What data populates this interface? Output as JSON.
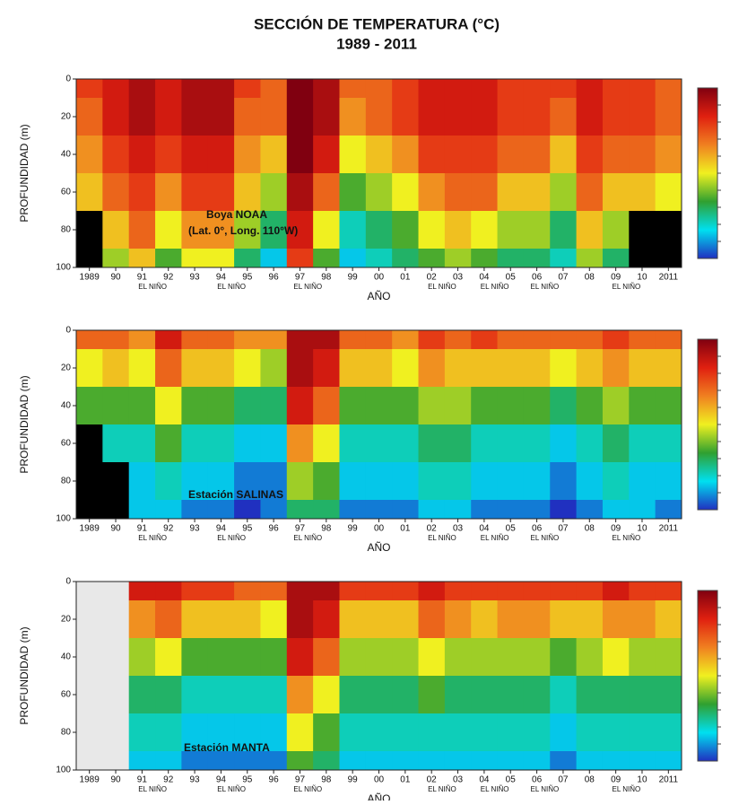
{
  "title": "SECCIÓN DE TEMPERATURA (°C)",
  "subtitle": "1989 - 2011",
  "chart_data": [
    {
      "type": "heatmap",
      "x_label": "AÑO",
      "y_label": "PROFUNDIDAD (m)",
      "annotations": [
        "Boya NOAA",
        "(Lat. 0°, Long. 110°W)"
      ],
      "x": [
        1989,
        1990,
        1991,
        1992,
        1993,
        1994,
        1995,
        1996,
        1997,
        1998,
        1999,
        2000,
        2001,
        2002,
        2003,
        2004,
        2005,
        2006,
        2007,
        2008,
        2009,
        2010,
        2011
      ],
      "y": [
        0,
        20,
        40,
        60,
        80,
        100
      ],
      "z": [
        [
          25,
          26,
          27,
          26,
          27,
          27,
          25,
          24,
          28,
          27,
          24,
          24,
          25,
          26,
          26,
          26,
          25,
          25,
          25,
          26,
          25,
          25,
          24
        ],
        [
          24,
          26,
          27,
          26,
          27,
          27,
          24,
          24,
          28,
          27,
          23,
          24,
          25,
          26,
          26,
          26,
          25,
          25,
          24,
          26,
          25,
          25,
          24
        ],
        [
          23,
          25,
          26,
          25,
          26,
          26,
          23,
          22,
          28,
          26,
          21,
          22,
          23,
          25,
          25,
          25,
          24,
          24,
          22,
          25,
          24,
          24,
          23
        ],
        [
          22,
          24,
          25,
          23,
          25,
          25,
          22,
          20,
          27,
          24,
          19,
          20,
          21,
          23,
          24,
          24,
          22,
          22,
          20,
          24,
          22,
          22,
          21
        ],
        [
          null,
          22,
          24,
          21,
          23,
          23,
          20,
          18,
          26,
          21,
          17,
          18,
          19,
          21,
          22,
          21,
          20,
          20,
          18,
          22,
          20,
          null,
          null
        ],
        [
          null,
          20,
          22,
          19,
          21,
          21,
          18,
          16,
          25,
          19,
          16,
          17,
          18,
          19,
          20,
          19,
          18,
          18,
          17,
          20,
          18,
          null,
          null
        ]
      ],
      "zlim": [
        14,
        28
      ],
      "colorscale": [
        "#2030c0",
        "#00e0f0",
        "#30a030",
        "#f0f020",
        "#f08020",
        "#e02010",
        "#800010"
      ],
      "missing_color": "#000000",
      "xlim": [
        1988.5,
        2011.5
      ],
      "ylim": [
        100,
        0
      ],
      "yticks": [
        0,
        20,
        40,
        60,
        80,
        100
      ],
      "xticks": [
        1989,
        {
          "value": 1990,
          "label": "90"
        },
        {
          "value": 1991,
          "label": "91"
        },
        {
          "value": 1992,
          "label": "92"
        },
        {
          "value": 1993,
          "label": "93"
        },
        {
          "value": 1994,
          "label": "94"
        },
        {
          "value": 1995,
          "label": "95"
        },
        {
          "value": 1996,
          "label": "96"
        },
        {
          "value": 1997,
          "label": "97"
        },
        {
          "value": 1998,
          "label": "98"
        },
        {
          "value": 1999,
          "label": "99"
        },
        {
          "value": 2000,
          "label": "00"
        },
        {
          "value": 2001,
          "label": "01"
        },
        {
          "value": 2002,
          "label": "02"
        },
        {
          "value": 2003,
          "label": "03"
        },
        {
          "value": 2004,
          "label": "04"
        },
        {
          "value": 2005,
          "label": "05"
        },
        {
          "value": 2006,
          "label": "06"
        },
        {
          "value": 2007,
          "label": "07"
        },
        {
          "value": 2008,
          "label": "08"
        },
        {
          "value": 2009,
          "label": "09"
        },
        {
          "value": 2010,
          "label": "10"
        },
        2011
      ],
      "x_notes": [
        {
          "x": 1991.4,
          "label": "EL NIÑO"
        },
        {
          "x": 1994.4,
          "label": "EL NIÑO"
        },
        {
          "x": 1997.3,
          "label": "EL NIÑO"
        },
        {
          "x": 2002.4,
          "label": "EL NIÑO"
        },
        {
          "x": 2004.4,
          "label": "EL NIÑO"
        },
        {
          "x": 2006.3,
          "label": "EL NIÑO"
        },
        {
          "x": 2009.4,
          "label": "EL NIÑO"
        }
      ]
    },
    {
      "type": "heatmap",
      "x_label": "AÑO",
      "y_label": "PROFUNDIDAD (m)",
      "annotations": [
        "Estación SALINAS"
      ],
      "x": [
        1989,
        1990,
        1991,
        1992,
        1993,
        1994,
        1995,
        1996,
        1997,
        1998,
        1999,
        2000,
        2001,
        2002,
        2003,
        2004,
        2005,
        2006,
        2007,
        2008,
        2009,
        2010,
        2011
      ],
      "y": [
        0,
        20,
        40,
        60,
        80,
        100
      ],
      "z": [
        [
          24,
          24,
          23,
          26,
          24,
          24,
          23,
          23,
          27,
          27,
          24,
          24,
          23,
          25,
          24,
          25,
          24,
          24,
          24,
          24,
          25,
          24,
          24
        ],
        [
          21,
          22,
          21,
          24,
          22,
          22,
          21,
          20,
          27,
          26,
          22,
          22,
          21,
          23,
          22,
          22,
          22,
          22,
          21,
          22,
          23,
          22,
          22
        ],
        [
          19,
          19,
          19,
          21,
          19,
          19,
          18,
          18,
          26,
          24,
          19,
          19,
          19,
          20,
          20,
          19,
          19,
          19,
          18,
          19,
          20,
          19,
          19
        ],
        [
          null,
          17,
          17,
          19,
          17,
          17,
          16,
          16,
          23,
          21,
          17,
          17,
          17,
          18,
          18,
          17,
          17,
          17,
          16,
          17,
          18,
          17,
          17
        ],
        [
          null,
          null,
          16,
          17,
          16,
          16,
          15,
          15,
          20,
          19,
          16,
          16,
          16,
          17,
          17,
          16,
          16,
          16,
          15,
          16,
          17,
          16,
          16
        ],
        [
          null,
          null,
          16,
          16,
          15,
          15,
          14,
          15,
          18,
          18,
          15,
          15,
          15,
          16,
          16,
          15,
          15,
          15,
          14,
          15,
          16,
          16,
          15
        ]
      ],
      "zlim": [
        14,
        28
      ],
      "colorscale": [
        "#2030c0",
        "#00e0f0",
        "#30a030",
        "#f0f020",
        "#f08020",
        "#e02010",
        "#800010"
      ],
      "missing_color": "#000000",
      "xlim": [
        1988.5,
        2011.5
      ],
      "ylim": [
        100,
        0
      ],
      "yticks": [
        0,
        20,
        40,
        60,
        80,
        100
      ],
      "xticks": [
        1989,
        {
          "value": 1990,
          "label": "90"
        },
        {
          "value": 1991,
          "label": "91"
        },
        {
          "value": 1992,
          "label": "92"
        },
        {
          "value": 1993,
          "label": "93"
        },
        {
          "value": 1994,
          "label": "94"
        },
        {
          "value": 1995,
          "label": "95"
        },
        {
          "value": 1996,
          "label": "96"
        },
        {
          "value": 1997,
          "label": "97"
        },
        {
          "value": 1998,
          "label": "98"
        },
        {
          "value": 1999,
          "label": "99"
        },
        {
          "value": 2000,
          "label": "00"
        },
        {
          "value": 2001,
          "label": "01"
        },
        {
          "value": 2002,
          "label": "02"
        },
        {
          "value": 2003,
          "label": "03"
        },
        {
          "value": 2004,
          "label": "04"
        },
        {
          "value": 2005,
          "label": "05"
        },
        {
          "value": 2006,
          "label": "06"
        },
        {
          "value": 2007,
          "label": "07"
        },
        {
          "value": 2008,
          "label": "08"
        },
        {
          "value": 2009,
          "label": "09"
        },
        {
          "value": 2010,
          "label": "10"
        },
        2011
      ],
      "x_notes": [
        {
          "x": 1991.4,
          "label": "EL NIÑO"
        },
        {
          "x": 1994.4,
          "label": "EL NIÑO"
        },
        {
          "x": 1997.3,
          "label": "EL NIÑO"
        },
        {
          "x": 2002.4,
          "label": "EL NIÑO"
        },
        {
          "x": 2004.4,
          "label": "EL NIÑO"
        },
        {
          "x": 2006.3,
          "label": "EL NIÑO"
        },
        {
          "x": 2009.4,
          "label": "EL NIÑO"
        }
      ]
    },
    {
      "type": "heatmap",
      "x_label": "AÑO",
      "y_label": "PROFUNDIDAD (m)",
      "annotations": [
        "Estación MANTA"
      ],
      "x": [
        1989,
        1990,
        1991,
        1992,
        1993,
        1994,
        1995,
        1996,
        1997,
        1998,
        1999,
        2000,
        2001,
        2002,
        2003,
        2004,
        2005,
        2006,
        2007,
        2008,
        2009,
        2010,
        2011
      ],
      "y": [
        0,
        20,
        40,
        60,
        80,
        100
      ],
      "z": [
        [
          null,
          null,
          26,
          26,
          25,
          25,
          24,
          24,
          27,
          27,
          25,
          25,
          25,
          26,
          25,
          25,
          25,
          25,
          25,
          25,
          26,
          25,
          25
        ],
        [
          null,
          null,
          23,
          24,
          22,
          22,
          22,
          21,
          27,
          26,
          22,
          22,
          22,
          24,
          23,
          22,
          23,
          23,
          22,
          22,
          23,
          23,
          22
        ],
        [
          null,
          null,
          20,
          21,
          19,
          19,
          19,
          19,
          26,
          24,
          20,
          20,
          20,
          21,
          20,
          20,
          20,
          20,
          19,
          20,
          21,
          20,
          20
        ],
        [
          null,
          null,
          18,
          18,
          17,
          17,
          17,
          17,
          23,
          21,
          18,
          18,
          18,
          19,
          18,
          18,
          18,
          18,
          17,
          18,
          18,
          18,
          18
        ],
        [
          null,
          null,
          17,
          17,
          16,
          16,
          16,
          16,
          21,
          19,
          17,
          17,
          17,
          17,
          17,
          17,
          17,
          17,
          16,
          17,
          17,
          17,
          17
        ],
        [
          null,
          null,
          16,
          16,
          15,
          15,
          15,
          15,
          19,
          18,
          16,
          16,
          16,
          16,
          16,
          16,
          16,
          16,
          15,
          16,
          16,
          16,
          16
        ]
      ],
      "zlim": [
        14,
        28
      ],
      "colorscale": [
        "#2030c0",
        "#00e0f0",
        "#30a030",
        "#f0f020",
        "#f08020",
        "#e02010",
        "#800010"
      ],
      "missing_color": "#e8e8e8",
      "xlim": [
        1988.5,
        2011.5
      ],
      "ylim": [
        100,
        0
      ],
      "yticks": [
        0,
        20,
        40,
        60,
        80,
        100
      ],
      "xticks": [
        1989,
        {
          "value": 1990,
          "label": "90"
        },
        {
          "value": 1991,
          "label": "91"
        },
        {
          "value": 1992,
          "label": "92"
        },
        {
          "value": 1993,
          "label": "93"
        },
        {
          "value": 1994,
          "label": "94"
        },
        {
          "value": 1995,
          "label": "95"
        },
        {
          "value": 1996,
          "label": "96"
        },
        {
          "value": 1997,
          "label": "97"
        },
        {
          "value": 1998,
          "label": "98"
        },
        {
          "value": 1999,
          "label": "99"
        },
        {
          "value": 2000,
          "label": "00"
        },
        {
          "value": 2001,
          "label": "01"
        },
        {
          "value": 2002,
          "label": "02"
        },
        {
          "value": 2003,
          "label": "03"
        },
        {
          "value": 2004,
          "label": "04"
        },
        {
          "value": 2005,
          "label": "05"
        },
        {
          "value": 2006,
          "label": "06"
        },
        {
          "value": 2007,
          "label": "07"
        },
        {
          "value": 2008,
          "label": "08"
        },
        {
          "value": 2009,
          "label": "09"
        },
        {
          "value": 2010,
          "label": "10"
        },
        2011
      ],
      "x_notes": [
        {
          "x": 1991.4,
          "label": "EL NIÑO"
        },
        {
          "x": 1994.4,
          "label": "EL NIÑO"
        },
        {
          "x": 1997.3,
          "label": "EL NIÑO"
        },
        {
          "x": 2002.4,
          "label": "EL NIÑO"
        },
        {
          "x": 2004.4,
          "label": "EL NIÑO"
        },
        {
          "x": 2006.3,
          "label": "EL NIÑO"
        },
        {
          "x": 2009.4,
          "label": "EL NIÑO"
        }
      ]
    }
  ]
}
